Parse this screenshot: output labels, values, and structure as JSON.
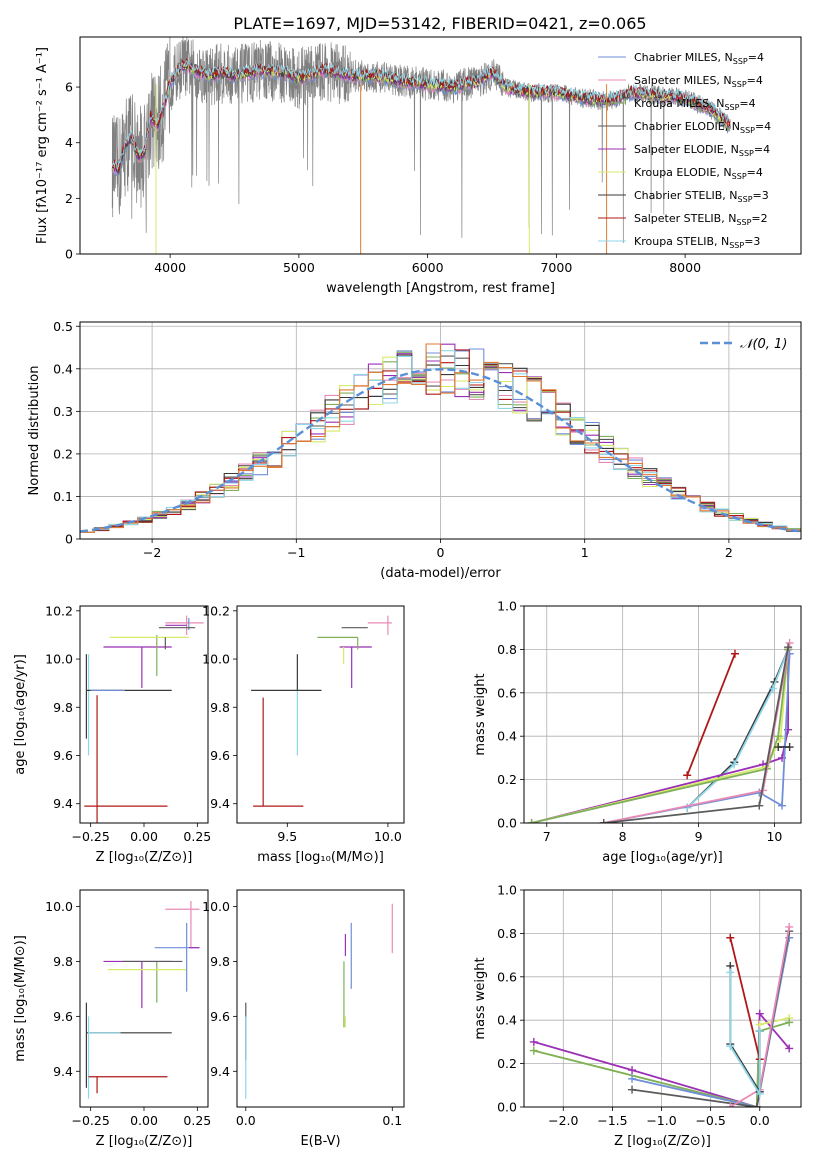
{
  "figure_title": "PLATE=1697, MJD=53142, FIBERID=0421, z=0.065",
  "colors": [
    "#6f8fd8",
    "#e88ab6",
    "#7fb05a",
    "#5a5a5a",
    "#9b2fb5",
    "#d8ea6a",
    "#3a3a3a",
    "#b01818",
    "#8fd6e8"
  ],
  "model_colors": {
    "Chabrier MILES": "#6f8fd8",
    "Salpeter MILES": "#e88ab6",
    "Kroupa MILES": "#7fb05a",
    "Chabrier ELODIE": "#5a5a5a",
    "Salpeter ELODIE": "#9b2fb5",
    "Kroupa ELODIE": "#d8ea6a",
    "Chabrier STELIB": "#3a3a3a",
    "Salpeter STELIB": "#b01818",
    "Kroupa STELIB": "#8fd6e8"
  },
  "chart_data": [
    {
      "id": "spectrum",
      "type": "line",
      "xlabel": "wavelength [Angstrom, rest frame]",
      "ylabel": "Flux [fλ10⁻¹⁷ erg cm⁻² s⁻¹ A⁻¹]",
      "xlim": [
        3300,
        8900
      ],
      "ylim": [
        0,
        7.8
      ],
      "xticks": [
        4000,
        5000,
        6000,
        7000,
        8000
      ],
      "yticks": [
        0,
        2,
        4,
        6
      ],
      "legend_position": "top-right",
      "legend": [
        {
          "name": "Chabrier MILES",
          "nssp": "4"
        },
        {
          "name": "Salpeter MILES",
          "nssp": "4"
        },
        {
          "name": "Kroupa MILES",
          "nssp": "4"
        },
        {
          "name": "Chabrier ELODIE",
          "nssp": "4"
        },
        {
          "name": "Salpeter ELODIE",
          "nssp": "4"
        },
        {
          "name": "Kroupa ELODIE",
          "nssp": "4"
        },
        {
          "name": "Chabrier STELIB",
          "nssp": "3"
        },
        {
          "name": "Salpeter STELIB",
          "nssp": "2"
        },
        {
          "name": "Kroupa STELIB",
          "nssp": "3"
        }
      ],
      "data_color": "#808080",
      "data_wavelength_range": [
        3550,
        8350
      ],
      "model_curve": {
        "x": [
          3550,
          3600,
          3650,
          3700,
          3750,
          3800,
          3850,
          3900,
          3950,
          4000,
          4100,
          4200,
          4300,
          4400,
          4500,
          4700,
          4900,
          5000,
          5200,
          5400,
          5600,
          5800,
          6000,
          6200,
          6400,
          6500,
          6600,
          6800,
          7000,
          7200,
          7400,
          7600,
          7800,
          8000,
          8200,
          8350
        ],
        "y": [
          3.2,
          3.0,
          3.9,
          4.2,
          3.5,
          3.6,
          4.9,
          4.6,
          5.2,
          6.2,
          6.8,
          6.6,
          6.4,
          6.5,
          6.4,
          6.6,
          6.5,
          6.3,
          6.6,
          6.4,
          6.4,
          6.2,
          6.1,
          6.0,
          6.2,
          6.5,
          6.0,
          5.8,
          5.8,
          5.6,
          5.5,
          5.8,
          5.7,
          5.6,
          5.2,
          4.6
        ]
      }
    },
    {
      "id": "residuals",
      "type": "step",
      "xlabel": "(data-model)/error",
      "ylabel": "Normed distribution",
      "xlim": [
        -2.5,
        2.5
      ],
      "ylim": [
        0,
        0.51
      ],
      "xticks": [
        -2,
        -1,
        0,
        1,
        2
      ],
      "yticks": [
        0.0,
        0.1,
        0.2,
        0.3,
        0.4,
        0.5
      ],
      "grid": true,
      "legend_position": "top-right",
      "legend_label": "𝒩(0, 1)",
      "gaussian": {
        "mean": 0,
        "sigma": 1,
        "color": "#5b8fd6"
      },
      "bin_edges_start": -2.5,
      "bin_width": 0.1
    },
    {
      "id": "age_vs_Z",
      "type": "errorbar",
      "xlabel": "Z [log₁₀(Z/Z⊙)]",
      "ylabel": "age  [log₁₀(age/yr)]",
      "xlim": [
        -0.3,
        0.3
      ],
      "ylim": [
        9.32,
        10.22
      ],
      "xticks": [
        -0.25,
        0.0,
        0.25
      ],
      "xtick_labels": [
        "−0.25",
        "0.00",
        "0.25"
      ],
      "yticks": [
        9.4,
        9.6,
        9.8,
        10.0,
        10.2
      ],
      "ytick_labels": [
        "9.4",
        "9.6",
        "9.8",
        "10.0",
        "10.2"
      ],
      "points": [
        {
          "c": 8,
          "x": -0.26,
          "y": 9.87,
          "xl": 0.0,
          "xh": 0.0,
          "yl": 0.27,
          "yh": 0.15
        },
        {
          "c": 6,
          "x": -0.27,
          "y": 9.87,
          "xl": 0.0,
          "xh": 0.4,
          "yl": 0.2,
          "yh": 0.15
        },
        {
          "c": 7,
          "x": -0.24,
          "y": 9.39,
          "xl": 0.04,
          "xh": 0.35,
          "yl": 0.0,
          "yh": 0.0
        },
        {
          "c": 7,
          "x": -0.22,
          "y": 9.39,
          "xl": 0.0,
          "xh": 0.0,
          "yl": 0.07,
          "yh": 0.46
        },
        {
          "c": 0,
          "x": -0.25,
          "y": 9.87,
          "xl": 0.0,
          "xh": 0.16,
          "yl": 0.0,
          "yh": 0.0
        },
        {
          "c": 4,
          "x": -0.01,
          "y": 10.05,
          "xl": 0.18,
          "xh": 0.14,
          "yl": 0.17,
          "yh": 0.0
        },
        {
          "c": 2,
          "x": 0.06,
          "y": 10.05,
          "xl": 0.0,
          "xh": 0.0,
          "yl": 0.12,
          "yh": 0.05
        },
        {
          "c": 5,
          "x": 0.07,
          "y": 10.09,
          "xl": 0.23,
          "xh": 0.14,
          "yl": 0.0,
          "yh": 0.0
        },
        {
          "c": 3,
          "x": 0.1,
          "y": 10.09,
          "xl": 0.0,
          "xh": 0.0,
          "yl": 0.05,
          "yh": 0.0
        },
        {
          "c": 1,
          "x": 0.2,
          "y": 10.15,
          "xl": 0.1,
          "xh": 0.08,
          "yl": 0.05,
          "yh": 0.03
        },
        {
          "c": 0,
          "x": 0.21,
          "y": 10.14,
          "xl": 0.0,
          "xh": 0.0,
          "yl": 0.02,
          "yh": 0.03
        },
        {
          "c": 3,
          "x": 0.17,
          "y": 10.13,
          "xl": 0.1,
          "xh": 0.07,
          "yl": 0.0,
          "yh": 0.0
        },
        {
          "c": 4,
          "x": 0.16,
          "y": 10.14,
          "xl": 0.06,
          "xh": 0.04,
          "yl": 0.0,
          "yh": 0.0
        }
      ]
    },
    {
      "id": "age_vs_mass",
      "type": "errorbar",
      "xlabel": "mass [log₁₀(M/M⊙)]",
      "ylabel": "",
      "xlim": [
        9.25,
        10.08
      ],
      "ylim": [
        9.32,
        10.22
      ],
      "xticks": [
        9.5,
        10.0
      ],
      "xtick_labels": [
        "9.5",
        "10.0"
      ],
      "yticks": [
        9.4,
        9.6,
        9.8,
        10.0,
        10.2
      ],
      "ytick_labels": [
        "9.4",
        "9.6",
        "9.8",
        "10.0",
        "10.2"
      ],
      "points": [
        {
          "c": 8,
          "x": 9.55,
          "y": 9.87,
          "xl": 0.0,
          "xh": 0.0,
          "yl": 0.27,
          "yh": 0.0
        },
        {
          "c": 6,
          "x": 9.55,
          "y": 9.87,
          "xl": 0.23,
          "xh": 0.12,
          "yl": 0.0,
          "yh": 0.15
        },
        {
          "c": 7,
          "x": 9.38,
          "y": 9.39,
          "xl": 0.05,
          "xh": 0.2,
          "yl": 0.0,
          "yh": 0.45
        },
        {
          "c": 0,
          "x": 9.5,
          "y": 9.87,
          "xl": 0.0,
          "xh": 0.0,
          "yl": 0.0,
          "yh": 0.0
        },
        {
          "c": 4,
          "x": 9.82,
          "y": 10.05,
          "xl": 0.06,
          "xh": 0.1,
          "yl": 0.17,
          "yh": 0.0
        },
        {
          "c": 5,
          "x": 9.78,
          "y": 10.05,
          "xl": 0.0,
          "xh": 0.0,
          "yl": 0.07,
          "yh": 0.0
        },
        {
          "c": 2,
          "x": 9.85,
          "y": 10.09,
          "xl": 0.2,
          "xh": 0.0,
          "yl": 0.05,
          "yh": 0.0
        },
        {
          "c": 3,
          "x": 9.85,
          "y": 10.09,
          "xl": 0.0,
          "xh": 0.0,
          "yl": 0.0,
          "yh": 0.0
        },
        {
          "c": 1,
          "x": 10.0,
          "y": 10.15,
          "xl": 0.1,
          "xh": 0.02,
          "yl": 0.05,
          "yh": 0.03
        },
        {
          "c": 0,
          "x": 9.85,
          "y": 10.12,
          "xl": 0.0,
          "xh": 0.0,
          "yl": 0.0,
          "yh": 0.0
        },
        {
          "c": 3,
          "x": 9.85,
          "y": 10.13,
          "xl": 0.08,
          "xh": 0.05,
          "yl": 0.0,
          "yh": 0.0
        }
      ]
    },
    {
      "id": "mass_weight_vs_age",
      "type": "line",
      "xlabel": "age  [log₁₀(age/yr)]",
      "ylabel": "mass weight",
      "xlim": [
        6.7,
        10.35
      ],
      "ylim": [
        0,
        1.0
      ],
      "xticks": [
        7,
        8,
        9,
        10
      ],
      "xtick_labels": [
        "7",
        "8",
        "9",
        "10"
      ],
      "yticks": [
        0.0,
        0.2,
        0.4,
        0.6,
        0.8,
        1.0
      ],
      "ytick_labels": [
        "0.0",
        "0.2",
        "0.4",
        "0.6",
        "0.8",
        "1.0"
      ],
      "grid": true,
      "series": [
        {
          "c": 7,
          "x": [
            8.85,
            9.48
          ],
          "y": [
            0.22,
            0.78
          ]
        },
        {
          "c": 6,
          "x": [
            8.85,
            9.47,
            10.0,
            10.18
          ],
          "y": [
            0.07,
            0.28,
            0.65,
            0.8
          ]
        },
        {
          "c": 8,
          "x": [
            8.85,
            9.47,
            9.98,
            10.18
          ],
          "y": [
            0.07,
            0.27,
            0.62,
            0.8
          ]
        },
        {
          "c": 4,
          "x": [
            6.8,
            9.85,
            10.1,
            10.18,
            10.18
          ],
          "y": [
            0.0,
            0.27,
            0.3,
            0.43,
            0.8
          ]
        },
        {
          "c": 5,
          "x": [
            6.8,
            9.9,
            10.08,
            10.18
          ],
          "y": [
            0.0,
            0.26,
            0.39,
            0.8
          ]
        },
        {
          "c": 2,
          "x": [
            6.8,
            9.9,
            10.05,
            10.18
          ],
          "y": [
            0.0,
            0.25,
            0.4,
            0.8
          ]
        },
        {
          "c": 0,
          "x": [
            7.75,
            9.8,
            10.1,
            10.2
          ],
          "y": [
            0.0,
            0.14,
            0.08,
            0.78
          ]
        },
        {
          "c": 1,
          "x": [
            7.75,
            9.85,
            10.2
          ],
          "y": [
            0.0,
            0.15,
            0.83
          ]
        },
        {
          "c": 3,
          "x": [
            7.75,
            9.8,
            10.18
          ],
          "y": [
            0.0,
            0.08,
            0.81
          ]
        },
        {
          "c": 6,
          "x": [
            10.05,
            10.2
          ],
          "y": [
            0.35,
            0.35
          ]
        }
      ]
    },
    {
      "id": "mass_vs_Z",
      "type": "errorbar",
      "xlabel": "Z [log₁₀(Z/Z⊙)]",
      "ylabel": "mass [log₁₀(M/M⊙)]",
      "xlim": [
        -0.3,
        0.3
      ],
      "ylim": [
        9.27,
        10.06
      ],
      "xticks": [
        -0.25,
        0.0,
        0.25
      ],
      "xtick_labels": [
        "−0.25",
        "0.00",
        "0.25"
      ],
      "yticks": [
        9.4,
        9.6,
        9.8,
        10.0
      ],
      "ytick_labels": [
        "9.4",
        "9.6",
        "9.8",
        "10.0"
      ],
      "points": [
        {
          "c": 6,
          "x": -0.27,
          "y": 9.54,
          "xl": 0.0,
          "xh": 0.4,
          "yl": 0.2,
          "yh": 0.11
        },
        {
          "c": 8,
          "x": -0.26,
          "y": 9.54,
          "xl": 0.0,
          "xh": 0.15,
          "yl": 0.24,
          "yh": 0.06
        },
        {
          "c": 7,
          "x": -0.22,
          "y": 9.38,
          "xl": 0.04,
          "xh": 0.33,
          "yl": 0.06,
          "yh": 0.0
        },
        {
          "c": 4,
          "x": -0.01,
          "y": 9.8,
          "xl": 0.18,
          "xh": 0.14,
          "yl": 0.17,
          "yh": 0.0
        },
        {
          "c": 2,
          "x": 0.06,
          "y": 9.8,
          "xl": 0.0,
          "xh": 0.0,
          "yl": 0.15,
          "yh": 0.0
        },
        {
          "c": 5,
          "x": 0.06,
          "y": 9.77,
          "xl": 0.23,
          "xh": 0.14,
          "yl": 0.0,
          "yh": 0.0
        },
        {
          "c": 3,
          "x": 0.1,
          "y": 9.8,
          "xl": 0.2,
          "xh": 0.08,
          "yl": 0.0,
          "yh": 0.0
        },
        {
          "c": 0,
          "x": 0.2,
          "y": 9.85,
          "xl": 0.15,
          "xh": 0.06,
          "yl": 0.16,
          "yh": 0.09
        },
        {
          "c": 1,
          "x": 0.22,
          "y": 9.99,
          "xl": 0.12,
          "xh": 0.04,
          "yl": 0.14,
          "yh": 0.03
        },
        {
          "c": 4,
          "x": 0.21,
          "y": 9.85,
          "xl": 0.0,
          "xh": 0.05,
          "yl": 0.0,
          "yh": 0.0
        }
      ]
    },
    {
      "id": "mass_vs_ebv",
      "type": "errorbar",
      "xlabel": "E(B-V)",
      "ylabel": "",
      "xlim": [
        -0.006,
        0.108
      ],
      "ylim": [
        9.27,
        10.06
      ],
      "xticks": [
        0.0,
        0.1
      ],
      "xtick_labels": [
        "0.0",
        "0.1"
      ],
      "yticks": [
        9.4,
        9.6,
        9.8,
        10.0
      ],
      "ytick_labels": [
        "9.4",
        "9.6",
        "9.8",
        "10.0"
      ],
      "points": [
        {
          "c": 3,
          "x": 0.0,
          "y": 9.54,
          "xl": 0.0,
          "xh": 0.0,
          "yl": 0.1,
          "yh": 0.11
        },
        {
          "c": 8,
          "x": 0.0,
          "y": 9.4,
          "xl": 0.0,
          "xh": 0.0,
          "yl": 0.1,
          "yh": 0.2
        },
        {
          "c": 2,
          "x": 0.067,
          "y": 9.7,
          "xl": 0.0,
          "xh": 0.0,
          "yl": 0.14,
          "yh": 0.1
        },
        {
          "c": 5,
          "x": 0.068,
          "y": 9.6,
          "xl": 0.0,
          "xh": 0.0,
          "yl": 0.04,
          "yh": 0.0
        },
        {
          "c": 4,
          "x": 0.068,
          "y": 9.82,
          "xl": 0.0,
          "xh": 0.0,
          "yl": 0.0,
          "yh": 0.08
        },
        {
          "c": 0,
          "x": 0.072,
          "y": 9.82,
          "xl": 0.0,
          "xh": 0.0,
          "yl": 0.12,
          "yh": 0.12
        },
        {
          "c": 3,
          "x": 0.072,
          "y": 9.9,
          "xl": 0.0,
          "xh": 0.0,
          "yl": 0.0,
          "yh": 0.0
        },
        {
          "c": 1,
          "x": 0.1,
          "y": 9.93,
          "xl": 0.0,
          "xh": 0.0,
          "yl": 0.1,
          "yh": 0.08
        },
        {
          "c": 3,
          "x": 0.0,
          "y": 9.6,
          "xl": 0.0,
          "xh": 0.0,
          "yl": 0.0,
          "yh": 0.0
        }
      ]
    },
    {
      "id": "mass_weight_vs_Z",
      "type": "line",
      "xlabel": "Z [log₁₀(Z/Z⊙)]",
      "ylabel": "mass weight",
      "xlim": [
        -2.4,
        0.42
      ],
      "ylim": [
        0,
        1.0
      ],
      "xticks": [
        -2.0,
        -1.5,
        -1.0,
        -0.5,
        0.0
      ],
      "xtick_labels": [
        "−2.0",
        "−1.5",
        "−1.0",
        "−0.5",
        "0.0"
      ],
      "yticks": [
        0.0,
        0.2,
        0.4,
        0.6,
        0.8,
        1.0
      ],
      "ytick_labels": [
        "0.0",
        "0.2",
        "0.4",
        "0.6",
        "0.8",
        "1.0"
      ],
      "grid": true,
      "series": [
        {
          "c": 4,
          "x": [
            -2.3,
            -1.3,
            -0.03,
            0.0,
            0.3
          ],
          "y": [
            0.3,
            0.17,
            0.0,
            0.43,
            0.27
          ]
        },
        {
          "c": 5,
          "x": [
            -2.3,
            -0.03,
            0.0,
            0.3
          ],
          "y": [
            0.26,
            0.0,
            0.38,
            0.41
          ]
        },
        {
          "c": 2,
          "x": [
            -2.3,
            -0.03,
            0.0,
            0.3
          ],
          "y": [
            0.26,
            0.0,
            0.35,
            0.39
          ]
        },
        {
          "c": 0,
          "x": [
            -1.3,
            -0.03,
            0.0,
            0.3
          ],
          "y": [
            0.13,
            0.0,
            0.07,
            0.78
          ]
        },
        {
          "c": 3,
          "x": [
            -1.3,
            -0.03,
            0.3
          ],
          "y": [
            0.08,
            0.0,
            0.81
          ]
        },
        {
          "c": 1,
          "x": [
            -0.3,
            0.0,
            0.3
          ],
          "y": [
            0.0,
            0.08,
            0.83
          ]
        },
        {
          "c": 7,
          "x": [
            -0.3,
            0.0
          ],
          "y": [
            0.78,
            0.22
          ]
        },
        {
          "c": 6,
          "x": [
            -0.3,
            -0.3,
            0.0,
            0.0
          ],
          "y": [
            0.65,
            0.29,
            0.07,
            0.35
          ]
        },
        {
          "c": 8,
          "x": [
            -0.3,
            -0.3,
            0.0,
            0.0
          ],
          "y": [
            0.62,
            0.28,
            0.06,
            0.35
          ]
        }
      ]
    }
  ]
}
